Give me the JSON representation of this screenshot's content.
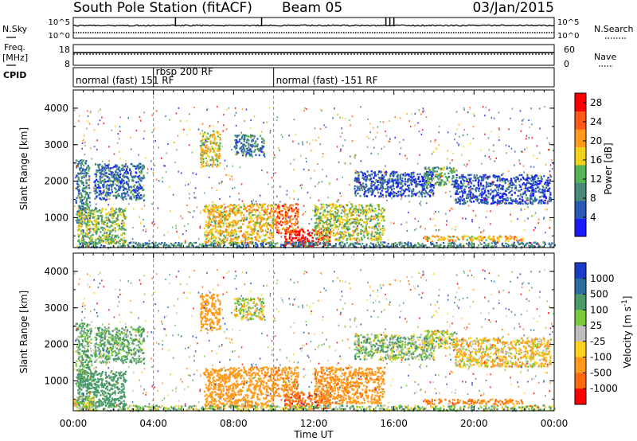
{
  "header": {
    "station": "South Pole Station (fitACF)",
    "beam": "Beam 05",
    "date": "03/Jan/2015"
  },
  "noise_panel": {
    "left_label": "N.Sky",
    "right_label": "N.Search",
    "left_ticks": [
      "10^5",
      "10^0"
    ],
    "right_ticks": [
      "10^5",
      "10^0"
    ]
  },
  "freq_panel": {
    "left_label_1": "Freq.",
    "left_label_2": "[MHz]",
    "left_ticks": [
      "18",
      "8"
    ],
    "right_label": "Nave",
    "right_ticks": [
      "60",
      "0"
    ]
  },
  "cpid_panel": {
    "label": "CPID",
    "modes": [
      {
        "label": "normal (fast) 151 RF",
        "start_hour": 0.0
      },
      {
        "label": "rbsp 200 RF",
        "start_hour": 4.0
      },
      {
        "label": "normal (fast) -151 RF",
        "start_hour": 10.0
      }
    ]
  },
  "chart_data": [
    {
      "type": "heatmap",
      "title": "",
      "xlabel": "",
      "ylabel": "Slant Range [km]",
      "x_unit": "hours UT",
      "xlim": [
        0,
        24
      ],
      "ylim": [
        180,
        4500
      ],
      "y_ticks": [
        "1000",
        "2000",
        "3000",
        "4000"
      ],
      "colorbar": {
        "label": "Power [dB]",
        "ticks": [
          "4",
          "8",
          "12",
          "16",
          "20",
          "24",
          "28"
        ],
        "range": [
          0,
          30
        ],
        "colors": [
          "#1a1aff",
          "#2a5ab8",
          "#4a8a7a",
          "#57b357",
          "#f0d21a",
          "#ff9a1a",
          "#ff5a1a",
          "#ff0000"
        ]
      },
      "echo_regions": [
        {
          "t0": 0.1,
          "t1": 0.8,
          "r0": 800,
          "r1": 2600,
          "power_db": 9
        },
        {
          "t0": 0.2,
          "t1": 2.6,
          "r0": 300,
          "r1": 1300,
          "power_db": 14
        },
        {
          "t0": 1.0,
          "t1": 3.5,
          "r0": 1500,
          "r1": 2500,
          "power_db": 7
        },
        {
          "t0": 6.3,
          "t1": 7.3,
          "r0": 2400,
          "r1": 3400,
          "power_db": 17
        },
        {
          "t0": 8.0,
          "t1": 9.5,
          "r0": 2700,
          "r1": 3300,
          "power_db": 8
        },
        {
          "t0": 6.5,
          "t1": 10.0,
          "r0": 300,
          "r1": 1400,
          "power_db": 18
        },
        {
          "t0": 10.0,
          "t1": 11.2,
          "r0": 600,
          "r1": 1400,
          "power_db": 23
        },
        {
          "t0": 10.5,
          "t1": 12.8,
          "r0": 250,
          "r1": 700,
          "power_db": 29
        },
        {
          "t0": 12.0,
          "t1": 15.5,
          "r0": 400,
          "r1": 1400,
          "power_db": 15
        },
        {
          "t0": 14.0,
          "t1": 18.0,
          "r0": 1600,
          "r1": 2300,
          "power_db": 6
        },
        {
          "t0": 17.5,
          "t1": 19.0,
          "r0": 1900,
          "r1": 2400,
          "power_db": 12
        },
        {
          "t0": 17.5,
          "t1": 22.5,
          "r0": 380,
          "r1": 520,
          "power_db": 19
        },
        {
          "t0": 19.0,
          "t1": 23.8,
          "r0": 1400,
          "r1": 2200,
          "power_db": 5
        },
        {
          "t0": 0.0,
          "t1": 24.0,
          "r0": 200,
          "r1": 350,
          "power_db": 9
        }
      ]
    },
    {
      "type": "heatmap",
      "title": "",
      "xlabel": "Time UT",
      "ylabel": "Slant Range [km]",
      "x_unit": "hours UT",
      "xlim": [
        0,
        24
      ],
      "ylim": [
        180,
        4500
      ],
      "x_ticks": [
        "00:00",
        "04:00",
        "08:00",
        "12:00",
        "16:00",
        "20:00",
        "00:00"
      ],
      "y_ticks": [
        "1000",
        "2000",
        "3000",
        "4000"
      ],
      "colorbar": {
        "label": "Velocity [m s^-1]",
        "ticks": [
          "1000",
          "500",
          "100",
          "25",
          "-25",
          "-100",
          "-500",
          "-1000"
        ],
        "colors": [
          "#1a3cc8",
          "#2a6ea0",
          "#4a9a6a",
          "#7acc3a",
          "#bebebe",
          "#ffd01a",
          "#ff9a1a",
          "#ff6a10",
          "#ff0000"
        ]
      },
      "echo_regions": [
        {
          "t0": 0.1,
          "t1": 0.9,
          "r0": 800,
          "r1": 2600,
          "velocity": 150
        },
        {
          "t0": 0.2,
          "t1": 2.6,
          "r0": 300,
          "r1": 1300,
          "velocity": 300
        },
        {
          "t0": 1.0,
          "t1": 3.5,
          "r0": 1500,
          "r1": 2500,
          "velocity": 120
        },
        {
          "t0": 0.0,
          "t1": 1.0,
          "r0": 300,
          "r1": 600,
          "velocity": 0
        },
        {
          "t0": 6.3,
          "t1": 7.3,
          "r0": 2400,
          "r1": 3400,
          "velocity": -300
        },
        {
          "t0": 8.0,
          "t1": 9.5,
          "r0": 2700,
          "r1": 3300,
          "velocity": 0
        },
        {
          "t0": 6.5,
          "t1": 10.0,
          "r0": 300,
          "r1": 1400,
          "velocity": -250
        },
        {
          "t0": 10.0,
          "t1": 11.2,
          "r0": 600,
          "r1": 1400,
          "velocity": -400
        },
        {
          "t0": 10.5,
          "t1": 12.8,
          "r0": 250,
          "r1": 700,
          "velocity": -900
        },
        {
          "t0": 12.0,
          "t1": 15.5,
          "r0": 400,
          "r1": 1400,
          "velocity": -400
        },
        {
          "t0": 14.0,
          "t1": 18.0,
          "r0": 1600,
          "r1": 2300,
          "velocity": 80
        },
        {
          "t0": 17.5,
          "t1": 19.0,
          "r0": 1900,
          "r1": 2400,
          "velocity": 0
        },
        {
          "t0": 17.5,
          "t1": 22.5,
          "r0": 380,
          "r1": 520,
          "velocity": -500
        },
        {
          "t0": 19.0,
          "t1": 23.8,
          "r0": 1400,
          "r1": 2200,
          "velocity": -80
        },
        {
          "t0": 0.0,
          "t1": 24.0,
          "r0": 200,
          "r1": 350,
          "velocity": 60
        }
      ]
    }
  ]
}
